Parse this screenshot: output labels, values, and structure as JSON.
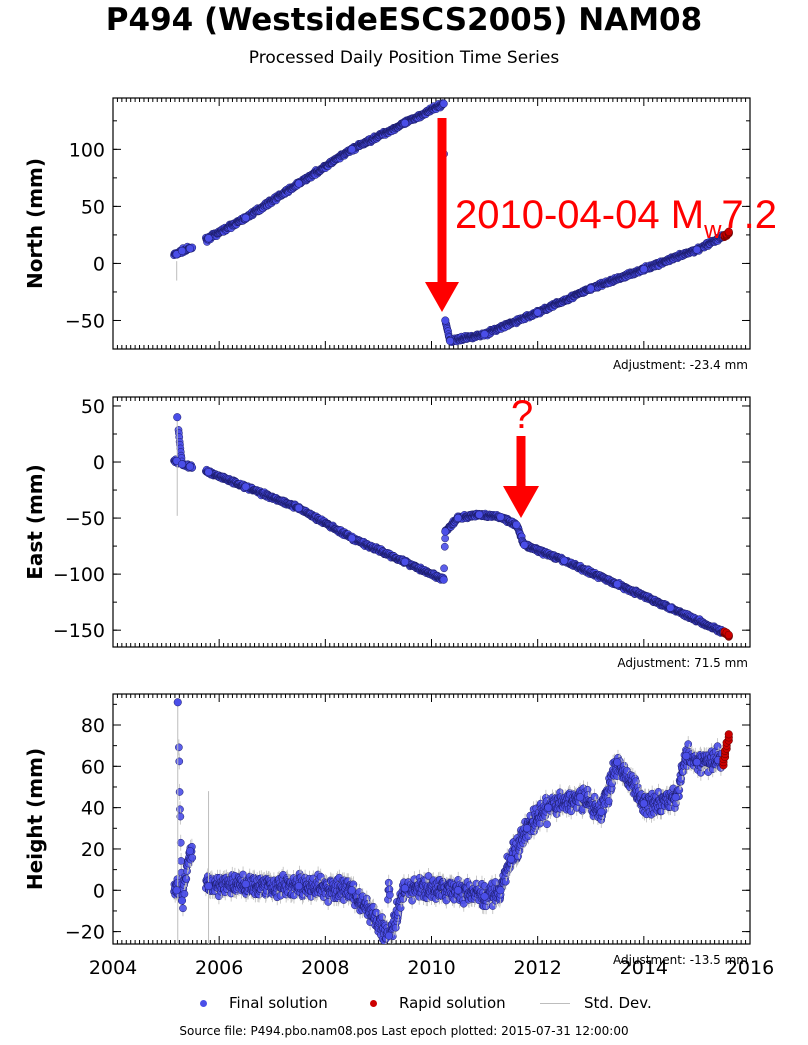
{
  "title": "P494 (WestsideESCS2005) NAM08",
  "subtitle": "Processed Daily Position Time Series",
  "colors": {
    "final": "#4a4ee8",
    "rapid": "#cc0000",
    "std": "#bdbdbd",
    "annotation": "#ff0000"
  },
  "legend": {
    "final": "Final solution",
    "rapid": "Rapid solution",
    "std": "Std. Dev."
  },
  "source": "Source file: P494.pbo.nam08.pos  Last epoch plotted: 2015-07-31 12:00:00",
  "annotations": {
    "earthquake_date": "2010-04-04",
    "magnitude_m": "M",
    "magnitude_sub": "w",
    "magnitude_value": "7.2",
    "question": "?"
  },
  "chart_data": [
    {
      "type": "scatter",
      "ylabel": "North (mm)",
      "xlim": [
        2004,
        2016
      ],
      "ylim": [
        -75,
        145
      ],
      "yticks": [
        -50,
        0,
        50,
        100
      ],
      "grid": false,
      "adjustment": "Adjustment: -23.4 mm",
      "series": [
        {
          "name": "Final solution",
          "x": [
            2005.2,
            2005.3,
            2005.45,
            2005.8,
            2006.5,
            2007.5,
            2008.5,
            2009.5,
            2010.23,
            2010.26,
            2010.35,
            2011.0,
            2012.0,
            2013.0,
            2014.0,
            2015.0,
            2015.5
          ],
          "y": [
            8,
            11,
            13,
            22,
            40,
            70,
            100,
            123,
            140,
            -50,
            -68,
            -62,
            -43,
            -22,
            -5,
            12,
            24
          ]
        },
        {
          "name": "Rapid solution",
          "x": [
            2015.52,
            2015.56,
            2015.6
          ],
          "y": [
            24,
            25,
            27
          ]
        }
      ]
    },
    {
      "type": "scatter",
      "ylabel": "East (mm)",
      "xlim": [
        2004,
        2016
      ],
      "ylim": [
        -165,
        58
      ],
      "yticks": [
        -150,
        -100,
        -50,
        0,
        50
      ],
      "grid": false,
      "adjustment": "Adjustment: 71.5 mm",
      "series": [
        {
          "name": "Final solution",
          "x": [
            2005.2,
            2005.21,
            2005.3,
            2005.45,
            2005.8,
            2006.5,
            2007.5,
            2008.5,
            2009.5,
            2010.23,
            2010.26,
            2010.5,
            2010.9,
            2011.3,
            2011.6,
            2011.75,
            2012.5,
            2013.5,
            2014.5,
            2015.5
          ],
          "y": [
            1,
            40,
            -2,
            -4,
            -9,
            -22,
            -41,
            -68,
            -89,
            -105,
            -62,
            -50,
            -47,
            -49,
            -56,
            -74,
            -88,
            -109,
            -130,
            -152
          ]
        },
        {
          "name": "Rapid solution",
          "x": [
            2015.52,
            2015.56,
            2015.6
          ],
          "y": [
            -152,
            -153,
            -155
          ]
        }
      ]
    },
    {
      "type": "scatter",
      "ylabel": "Height (mm)",
      "xlim": [
        2004,
        2016
      ],
      "xticks": [
        2004,
        2006,
        2008,
        2010,
        2012,
        2014,
        2016
      ],
      "ylim": [
        -26,
        95
      ],
      "yticks": [
        -20,
        0,
        20,
        40,
        60,
        80
      ],
      "grid": false,
      "adjustment": "Adjustment: -13.5 mm",
      "series": [
        {
          "name": "Final solution",
          "x": [
            2005.2,
            2005.22,
            2005.3,
            2005.45,
            2005.8,
            2006.5,
            2007.5,
            2008.5,
            2009.2,
            2009.5,
            2010.5,
            2011.0,
            2011.3,
            2011.5,
            2011.8,
            2012.2,
            2012.8,
            2013.2,
            2013.5,
            2014.0,
            2014.6,
            2014.8,
            2015.0,
            2015.4
          ],
          "y": [
            0,
            91,
            -5,
            19,
            2,
            3,
            2,
            0,
            -22,
            1,
            0,
            -3,
            0,
            15,
            30,
            40,
            45,
            38,
            62,
            42,
            45,
            65,
            62,
            63
          ]
        },
        {
          "name": "Rapid solution",
          "x": [
            2015.5,
            2015.53,
            2015.56,
            2015.6
          ],
          "y": [
            62,
            66,
            70,
            74
          ]
        }
      ]
    }
  ]
}
